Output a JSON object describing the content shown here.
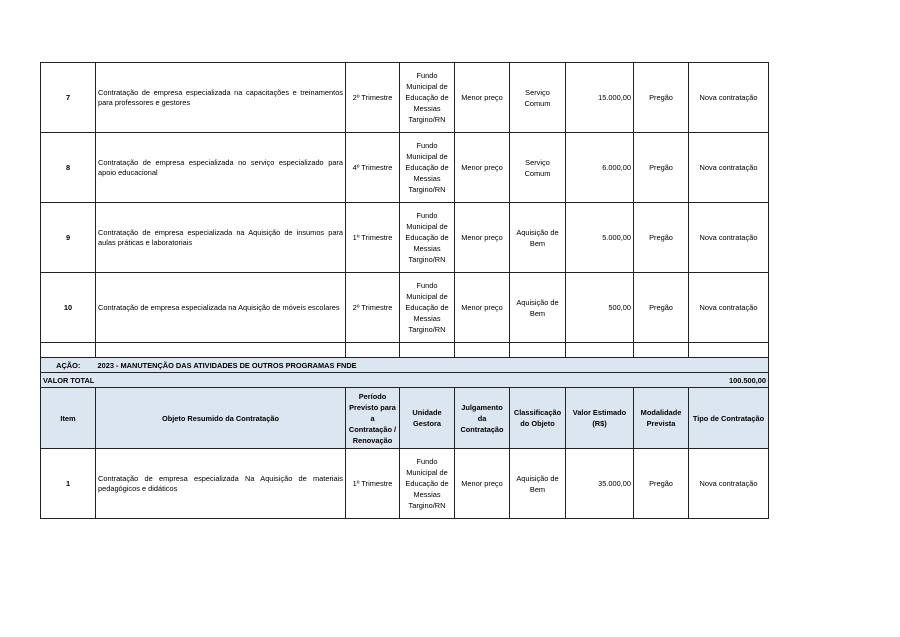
{
  "rows_top": [
    {
      "item": "7",
      "objeto": "Contratação de empresa especializada na capacitações e treinamentos para professores e gestores",
      "periodo": "2º Trimestre",
      "unidade": "Fundo Municipal de Educação de Messias Targino/RN",
      "julgamento": "Menor preço",
      "classificacao": "Serviço Comum",
      "valor": "15.000,00",
      "modalidade": "Pregão",
      "tipo": "Nova contratação"
    },
    {
      "item": "8",
      "objeto": "Contratação de empresa especializada no serviço especializado para apoio educacional",
      "periodo": "4º Trimestre",
      "unidade": "Fundo Municipal de Educação de Messias Targino/RN",
      "julgamento": "Menor preço",
      "classificacao": "Serviço Comum",
      "valor": "6.000,00",
      "modalidade": "Pregão",
      "tipo": "Nova contratação"
    },
    {
      "item": "9",
      "objeto": "Contratação de empresa especializada na Aquisição de insumos para aulas práticas e laboratoriais",
      "periodo": "1º Trimestre",
      "unidade": "Fundo Municipal de Educação de Messias Targino/RN",
      "julgamento": "Menor preço",
      "classificacao": "Aquisição de Bem",
      "valor": "5.000,00",
      "modalidade": "Pregão",
      "tipo": "Nova contratação"
    },
    {
      "item": "10",
      "objeto": "Contratação de empresa especializada na Aquisição de móveis escolares",
      "periodo": "2º Trimestre",
      "unidade": "Fundo Municipal de Educação de Messias Targino/RN",
      "julgamento": "Menor preço",
      "classificacao": "Aquisição de Bem",
      "valor": "500,00",
      "modalidade": "Pregão",
      "tipo": "Nova contratação"
    }
  ],
  "acao": {
    "label": "AÇÃO:",
    "value": "2023 - MANUTENÇÃO DAS ATIVIDADES DE OUTROS PROGRAMAS FNDE"
  },
  "valor_total": {
    "label": "VALOR TOTAL",
    "value": "100.500,00"
  },
  "headers": [
    "Item",
    "Objeto Resumido da Contratação",
    "Período Previsto para a Contratação / Renovação",
    "Unidade Gestora",
    "Julgamento da Contratação",
    "Classificação do Objeto",
    "Valor Estimado (R$)",
    "Modalidade Prevista",
    "Tipo de Contratação"
  ],
  "rows_bottom": [
    {
      "item": "1",
      "objeto": "Contratação de empresa especializada Na Aquisição de materiais pedagógicos e didáticos",
      "periodo": "1º Trimestre",
      "unidade": "Fundo Municipal de Educação de Messias Targino/RN",
      "julgamento": "Menor preço",
      "classificacao": "Aquisição de Bem",
      "valor": "35.000,00",
      "modalidade": "Pregão",
      "tipo": "Nova contratação"
    }
  ],
  "colors": {
    "header_bg": "#dce6f1",
    "border": "#222222"
  }
}
